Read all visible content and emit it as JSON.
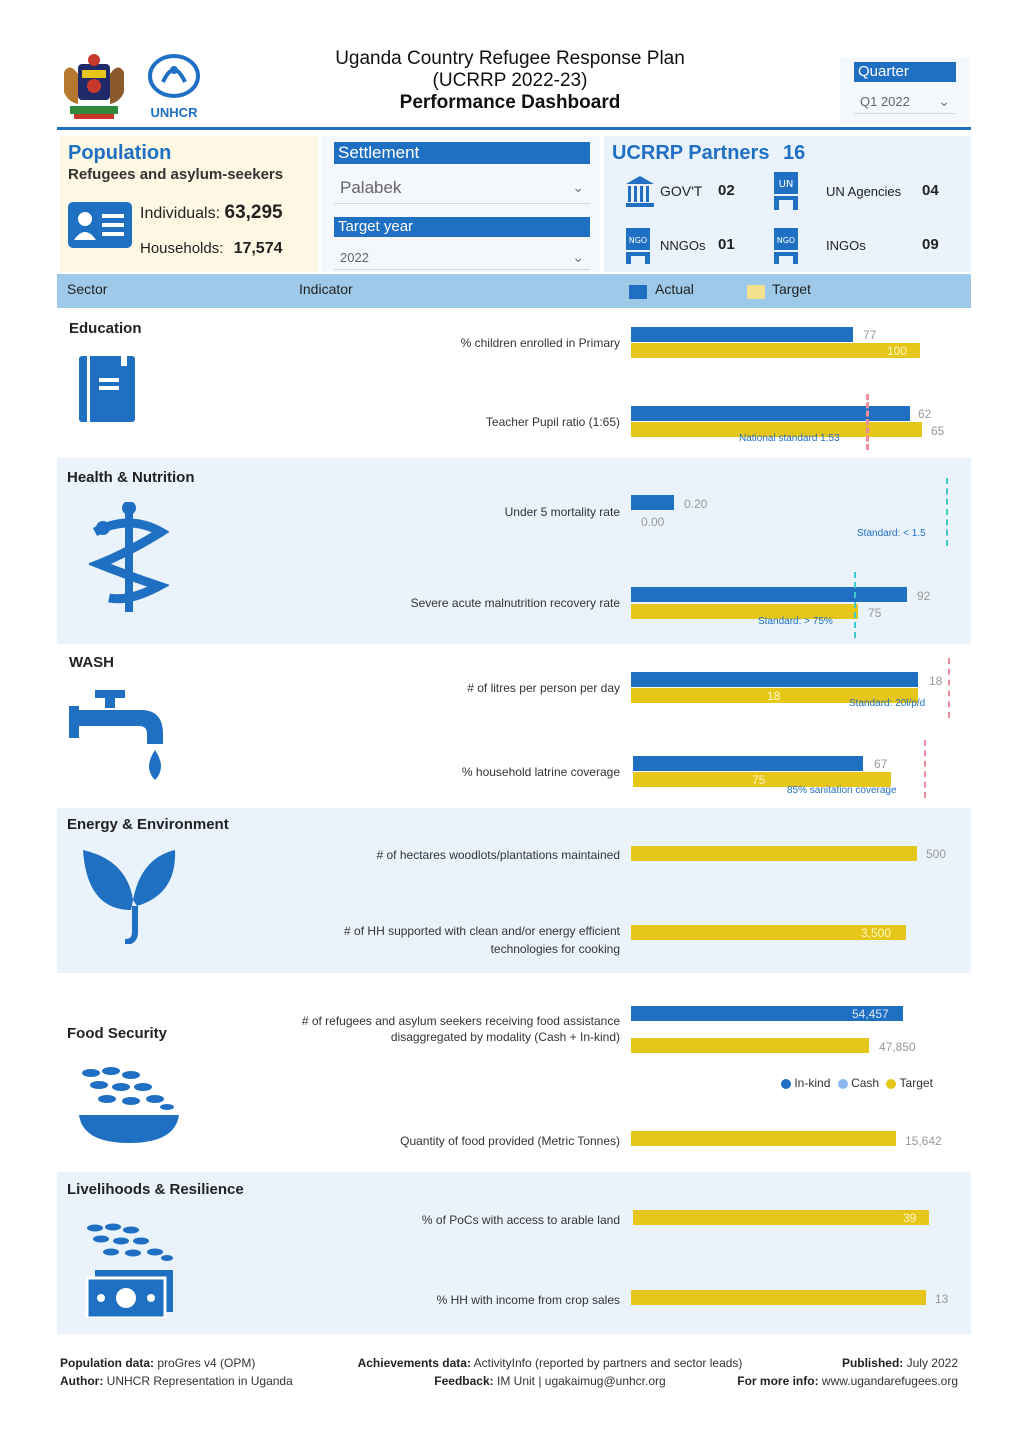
{
  "header": {
    "title_line1": "Uganda Country Refugee Response Plan",
    "title_line2": "(UCRRP 2022-23)",
    "title_line3": "Performance Dashboard",
    "unhcr_logo_text": "UNHCR",
    "quarter_label": "Quarter",
    "quarter_value": "Q1 2022"
  },
  "population": {
    "title": "Population",
    "subtitle": "Refugees and asylum-seekers",
    "individuals_label": "Individuals:",
    "individuals_value": "63,295",
    "households_label": "Households:",
    "households_value": "17,574"
  },
  "filters": {
    "settlement_label": "Settlement",
    "settlement_value": "Palabek",
    "target_year_label": "Target year",
    "target_year_value": "2022"
  },
  "partners": {
    "title": "UCRRP Partners",
    "total": "16",
    "items": [
      {
        "label": "GOV'T",
        "value": "02",
        "icon": "government-building-icon"
      },
      {
        "label": "UN Agencies",
        "value": "04",
        "icon": "un-flag-icon"
      },
      {
        "label": "NNGOs",
        "value": "01",
        "icon": "ngo-flag-icon"
      },
      {
        "label": "INGOs",
        "value": "09",
        "icon": "ngo-flag-icon"
      }
    ]
  },
  "table_header": {
    "sector": "Sector",
    "indicator": "Indicator",
    "actual": "Actual",
    "target": "Target"
  },
  "colors": {
    "actual": "#1f6fc2",
    "target": "#e6c619",
    "accent": "#1f6fc2"
  },
  "sectors": {
    "education": {
      "title": "Education",
      "ind1": "% children enrolled in Primary",
      "ind1_actual": "77",
      "ind1_target": "100",
      "ind2": "Teacher Pupil ratio (1:65)",
      "ind2_actual": "62",
      "ind2_target": "65",
      "ind2_standard": "National standard 1:53"
    },
    "health": {
      "title": "Health & Nutrition",
      "ind1": "Under 5 mortality rate",
      "ind1_actual": "0.20",
      "ind1_target": "0.00",
      "ind1_standard": "Standard: < 1.5",
      "ind2": "Severe acute malnutrition recovery rate",
      "ind2_actual": "92",
      "ind2_target": "75",
      "ind2_standard": "Standard: > 75%"
    },
    "wash": {
      "title": "WASH",
      "ind1": "# of litres per person per day",
      "ind1_actual": "18",
      "ind1_target": "18",
      "ind1_standard": "Standard: 20l/p/d",
      "ind2": "% household latrine coverage",
      "ind2_actual": "67",
      "ind2_target": "75",
      "ind2_standard": "85% sanitation coverage"
    },
    "energy": {
      "title": "Energy & Environment",
      "ind1": "# of hectares woodlots/plantations maintained",
      "ind1_target": "500",
      "ind2_line1": "# of HH supported with clean and/or energy efficient",
      "ind2_line2": "technologies for cooking",
      "ind2_target": "3,500"
    },
    "food": {
      "title": "Food Security",
      "ind1_line1": "# of refugees and asylum seekers receiving food assistance",
      "ind1_line2": "disaggregated by modality (Cash + In-kind)",
      "ind1_inkind": "54,457",
      "ind1_target": "47,850",
      "legend_inkind": "In-kind",
      "legend_cash": "Cash",
      "legend_target": "Target",
      "ind2": "Quantity of food provided (Metric Tonnes)",
      "ind2_target": "15,642"
    },
    "livelihoods": {
      "title": "Livelihoods & Resilience",
      "ind1": "% of PoCs with access to arable land",
      "ind1_target": "39",
      "ind2": "% HH with income from crop sales",
      "ind2_target": "13"
    }
  },
  "footer": {
    "pop_label": "Population data:",
    "pop_value": "proGres v4 (OPM)",
    "author_label": "Author:",
    "author_value": "UNHCR Representation in Uganda",
    "ach_label": "Achievements data:",
    "ach_value": "ActivityInfo (reported by partners and sector leads)",
    "feedback_label": "Feedback:",
    "feedback_value": "IM Unit | ugakaimug@unhcr.org",
    "published_label": "Published:",
    "published_value": "July 2022",
    "info_label": "For more info:",
    "info_value": "www.ugandarefugees.org"
  }
}
